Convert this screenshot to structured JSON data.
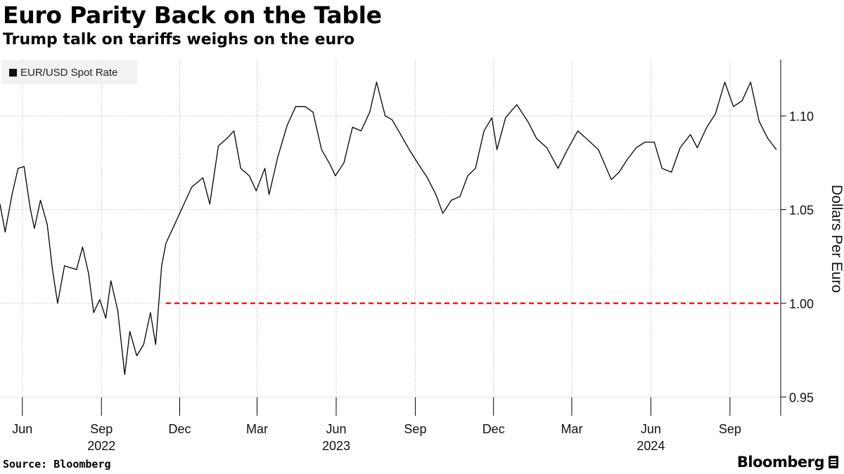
{
  "header": {
    "title": "Euro Parity Back on the Table",
    "subtitle": "Trump talk on tariffs weighs on the euro"
  },
  "legend": {
    "label": "EUR/USD Spot Rate"
  },
  "footer": {
    "source": "Source: Bloomberg",
    "brand": "Bloomberg"
  },
  "colors": {
    "line": "#000000",
    "reference": "#e0201b",
    "grid": "#bdbdbd",
    "legend_bg": "#f2f2f2"
  },
  "chart_data": {
    "type": "line",
    "ylabel": "Dollars Per Euro",
    "ylim": [
      0.94,
      1.13
    ],
    "yticks": [
      0.95,
      1.0,
      1.05,
      1.1
    ],
    "ytick_labels": [
      "0.95",
      "1.00",
      "1.05",
      "1.10"
    ],
    "xlim": [
      "2022-05-06",
      "2024-10-30"
    ],
    "xticks": [
      {
        "date": "2022-06-01",
        "label": "Jun"
      },
      {
        "date": "2022-09-01",
        "label": "Sep"
      },
      {
        "date": "2022-12-01",
        "label": "Dec"
      },
      {
        "date": "2023-03-01",
        "label": "Mar"
      },
      {
        "date": "2023-06-01",
        "label": "Jun"
      },
      {
        "date": "2023-09-01",
        "label": "Sep"
      },
      {
        "date": "2023-12-01",
        "label": "Dec"
      },
      {
        "date": "2024-03-01",
        "label": "Mar"
      },
      {
        "date": "2024-06-01",
        "label": "Jun"
      },
      {
        "date": "2024-09-01",
        "label": "Sep"
      }
    ],
    "year_labels": [
      {
        "date": "2022-09-01",
        "label": "2022"
      },
      {
        "date": "2023-06-01",
        "label": "2023"
      },
      {
        "date": "2024-06-01",
        "label": "2024"
      }
    ],
    "reference_line": {
      "value": 1.0,
      "from": "2022-11-15",
      "style": "dashed"
    },
    "grid": true,
    "legend_position": "top-left",
    "series": [
      {
        "name": "EUR/USD Spot Rate",
        "x": [
          "2022-05-06",
          "2022-05-12",
          "2022-05-20",
          "2022-05-27",
          "2022-06-03",
          "2022-06-10",
          "2022-06-15",
          "2022-06-22",
          "2022-06-30",
          "2022-07-06",
          "2022-07-12",
          "2022-07-20",
          "2022-07-27",
          "2022-08-03",
          "2022-08-10",
          "2022-08-17",
          "2022-08-23",
          "2022-08-30",
          "2022-09-06",
          "2022-09-12",
          "2022-09-20",
          "2022-09-28",
          "2022-10-04",
          "2022-10-12",
          "2022-10-20",
          "2022-10-28",
          "2022-11-03",
          "2022-11-10",
          "2022-11-15",
          "2022-11-25",
          "2022-12-05",
          "2022-12-15",
          "2022-12-28",
          "2023-01-05",
          "2023-01-15",
          "2023-01-25",
          "2023-02-02",
          "2023-02-10",
          "2023-02-20",
          "2023-02-28",
          "2023-03-10",
          "2023-03-15",
          "2023-03-25",
          "2023-04-05",
          "2023-04-15",
          "2023-04-26",
          "2023-05-05",
          "2023-05-15",
          "2023-05-25",
          "2023-05-31",
          "2023-06-10",
          "2023-06-20",
          "2023-06-30",
          "2023-07-10",
          "2023-07-18",
          "2023-07-28",
          "2023-08-05",
          "2023-08-15",
          "2023-08-25",
          "2023-09-05",
          "2023-09-15",
          "2023-09-25",
          "2023-10-03",
          "2023-10-13",
          "2023-10-23",
          "2023-11-01",
          "2023-11-10",
          "2023-11-20",
          "2023-11-29",
          "2023-12-05",
          "2023-12-15",
          "2023-12-28",
          "2024-01-10",
          "2024-01-20",
          "2024-02-01",
          "2024-02-14",
          "2024-02-25",
          "2024-03-08",
          "2024-03-20",
          "2024-04-01",
          "2024-04-16",
          "2024-04-25",
          "2024-05-05",
          "2024-05-15",
          "2024-05-25",
          "2024-06-05",
          "2024-06-14",
          "2024-06-25",
          "2024-07-05",
          "2024-07-17",
          "2024-07-25",
          "2024-08-05",
          "2024-08-15",
          "2024-08-26",
          "2024-09-05",
          "2024-09-15",
          "2024-09-25",
          "2024-10-05",
          "2024-10-15",
          "2024-10-25"
        ],
        "y": [
          1.053,
          1.038,
          1.058,
          1.072,
          1.073,
          1.051,
          1.04,
          1.055,
          1.042,
          1.018,
          1.0,
          1.02,
          1.019,
          1.018,
          1.03,
          1.016,
          0.995,
          1.002,
          0.992,
          1.012,
          0.996,
          0.962,
          0.985,
          0.972,
          0.978,
          0.995,
          0.978,
          1.02,
          1.032,
          1.042,
          1.052,
          1.062,
          1.067,
          1.053,
          1.084,
          1.088,
          1.092,
          1.072,
          1.068,
          1.06,
          1.072,
          1.058,
          1.078,
          1.095,
          1.105,
          1.105,
          1.102,
          1.082,
          1.074,
          1.068,
          1.075,
          1.094,
          1.092,
          1.102,
          1.118,
          1.1,
          1.098,
          1.09,
          1.082,
          1.074,
          1.067,
          1.058,
          1.048,
          1.055,
          1.057,
          1.068,
          1.072,
          1.092,
          1.099,
          1.082,
          1.099,
          1.106,
          1.097,
          1.088,
          1.083,
          1.072,
          1.082,
          1.092,
          1.087,
          1.082,
          1.066,
          1.07,
          1.077,
          1.083,
          1.086,
          1.086,
          1.072,
          1.07,
          1.083,
          1.09,
          1.083,
          1.094,
          1.101,
          1.118,
          1.105,
          1.108,
          1.118,
          1.097,
          1.088,
          1.082
        ]
      }
    ]
  }
}
